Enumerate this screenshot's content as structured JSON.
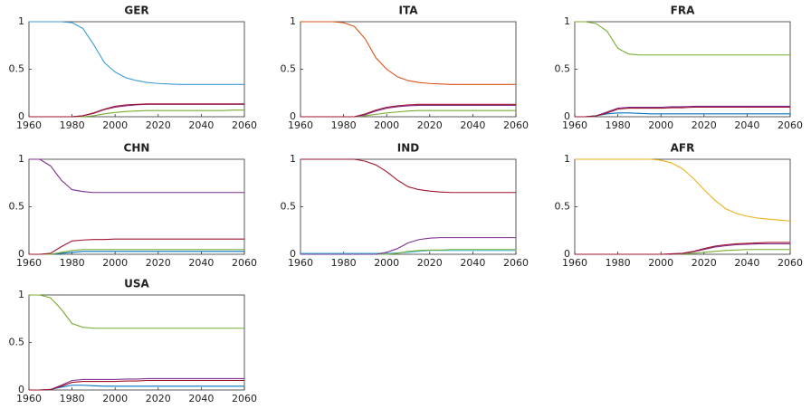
{
  "chart_data": [
    {
      "type": "line",
      "title": "GER",
      "x": [
        1960,
        1965,
        1970,
        1975,
        1980,
        1985,
        1990,
        1995,
        2000,
        2005,
        2010,
        2015,
        2020,
        2025,
        2030,
        2035,
        2040,
        2045,
        2050,
        2055,
        2060
      ],
      "xlim": [
        1960,
        2060
      ],
      "xticks": [
        1960,
        1980,
        2000,
        2020,
        2040,
        2060
      ],
      "ylim": [
        0,
        1
      ],
      "yticks": [
        0,
        0.5,
        1
      ],
      "series": [
        {
          "color": "#3d9bd6",
          "values": [
            1,
            1,
            1,
            1,
            0.99,
            0.93,
            0.76,
            0.57,
            0.47,
            0.41,
            0.38,
            0.36,
            0.35,
            0.345,
            0.34,
            0.34,
            0.34,
            0.34,
            0.34,
            0.34,
            0.34
          ]
        },
        {
          "color": "#77ac30",
          "values": [
            0,
            0,
            0,
            0,
            0,
            0,
            0.01,
            0.03,
            0.045,
            0.055,
            0.06,
            0.065,
            0.065,
            0.065,
            0.065,
            0.065,
            0.065,
            0.065,
            0.065,
            0.07,
            0.07
          ]
        },
        {
          "color": "#7e2f8e",
          "values": [
            0,
            0,
            0,
            0,
            0,
            0.01,
            0.035,
            0.075,
            0.1,
            0.115,
            0.125,
            0.13,
            0.13,
            0.13,
            0.13,
            0.13,
            0.13,
            0.13,
            0.13,
            0.13,
            0.13
          ]
        },
        {
          "color": "#a2142f",
          "values": [
            0,
            0,
            0,
            0,
            0,
            0.01,
            0.04,
            0.08,
            0.11,
            0.125,
            0.13,
            0.135,
            0.135,
            0.135,
            0.135,
            0.135,
            0.135,
            0.135,
            0.135,
            0.135,
            0.135
          ]
        }
      ]
    },
    {
      "type": "line",
      "title": "ITA",
      "x": [
        1960,
        1965,
        1970,
        1975,
        1980,
        1985,
        1990,
        1995,
        2000,
        2005,
        2010,
        2015,
        2020,
        2025,
        2030,
        2035,
        2040,
        2045,
        2050,
        2055,
        2060
      ],
      "xlim": [
        1960,
        2060
      ],
      "xticks": [
        1960,
        1980,
        2000,
        2020,
        2040,
        2060
      ],
      "ylim": [
        0,
        1
      ],
      "yticks": [
        0,
        0.5,
        1
      ],
      "series": [
        {
          "color": "#d95319",
          "values": [
            1,
            1,
            1,
            1,
            0.99,
            0.95,
            0.82,
            0.62,
            0.5,
            0.42,
            0.38,
            0.36,
            0.35,
            0.345,
            0.34,
            0.34,
            0.34,
            0.34,
            0.34,
            0.34,
            0.34
          ]
        },
        {
          "color": "#77ac30",
          "values": [
            0,
            0,
            0,
            0,
            0,
            0,
            0.01,
            0.025,
            0.04,
            0.05,
            0.06,
            0.065,
            0.065,
            0.065,
            0.065,
            0.065,
            0.065,
            0.065,
            0.065,
            0.065,
            0.065
          ]
        },
        {
          "color": "#7e2f8e",
          "values": [
            0,
            0,
            0,
            0,
            0,
            0,
            0.02,
            0.06,
            0.09,
            0.105,
            0.115,
            0.12,
            0.12,
            0.12,
            0.12,
            0.12,
            0.12,
            0.12,
            0.12,
            0.12,
            0.12
          ]
        },
        {
          "color": "#a2142f",
          "values": [
            0,
            0,
            0,
            0,
            0,
            0,
            0.03,
            0.07,
            0.1,
            0.115,
            0.125,
            0.13,
            0.13,
            0.13,
            0.13,
            0.13,
            0.13,
            0.13,
            0.13,
            0.13,
            0.13
          ]
        }
      ]
    },
    {
      "type": "line",
      "title": "FRA",
      "x": [
        1960,
        1965,
        1970,
        1975,
        1980,
        1985,
        1990,
        1995,
        2000,
        2005,
        2010,
        2015,
        2020,
        2025,
        2030,
        2035,
        2040,
        2045,
        2050,
        2055,
        2060
      ],
      "xlim": [
        1960,
        2060
      ],
      "xticks": [
        1960,
        1980,
        2000,
        2020,
        2040,
        2060
      ],
      "ylim": [
        0,
        1
      ],
      "yticks": [
        0,
        0.5,
        1
      ],
      "series": [
        {
          "color": "#77ac30",
          "values": [
            1,
            1,
            0.98,
            0.9,
            0.72,
            0.66,
            0.65,
            0.65,
            0.65,
            0.65,
            0.65,
            0.65,
            0.65,
            0.65,
            0.65,
            0.65,
            0.65,
            0.65,
            0.65,
            0.65,
            0.65
          ]
        },
        {
          "color": "#0072bd",
          "values": [
            0,
            0,
            0.01,
            0.03,
            0.04,
            0.04,
            0.035,
            0.03,
            0.03,
            0.03,
            0.03,
            0.03,
            0.03,
            0.03,
            0.03,
            0.03,
            0.03,
            0.03,
            0.03,
            0.03,
            0.03
          ]
        },
        {
          "color": "#7e2f8e",
          "values": [
            0,
            0,
            0.01,
            0.05,
            0.09,
            0.1,
            0.1,
            0.1,
            0.1,
            0.105,
            0.105,
            0.11,
            0.11,
            0.11,
            0.11,
            0.11,
            0.11,
            0.11,
            0.11,
            0.11,
            0.11
          ]
        },
        {
          "color": "#a2142f",
          "values": [
            0,
            0,
            0.01,
            0.04,
            0.08,
            0.09,
            0.09,
            0.09,
            0.09,
            0.095,
            0.095,
            0.1,
            0.1,
            0.1,
            0.1,
            0.1,
            0.1,
            0.1,
            0.1,
            0.1,
            0.1
          ]
        }
      ]
    },
    {
      "type": "line",
      "title": "CHN",
      "x": [
        1960,
        1965,
        1970,
        1975,
        1980,
        1985,
        1990,
        1995,
        2000,
        2005,
        2010,
        2015,
        2020,
        2025,
        2030,
        2035,
        2040,
        2045,
        2050,
        2055,
        2060
      ],
      "xlim": [
        1960,
        2060
      ],
      "xticks": [
        1960,
        1980,
        2000,
        2020,
        2040,
        2060
      ],
      "ylim": [
        0,
        1
      ],
      "yticks": [
        0,
        0.5,
        1
      ],
      "series": [
        {
          "color": "#7e2f8e",
          "values": [
            1,
            1,
            0.93,
            0.78,
            0.68,
            0.66,
            0.65,
            0.65,
            0.65,
            0.65,
            0.65,
            0.65,
            0.65,
            0.65,
            0.65,
            0.65,
            0.65,
            0.65,
            0.65,
            0.65,
            0.65
          ]
        },
        {
          "color": "#0072bd",
          "values": [
            0,
            0,
            0,
            0.01,
            0.02,
            0.03,
            0.03,
            0.03,
            0.03,
            0.03,
            0.03,
            0.03,
            0.03,
            0.03,
            0.03,
            0.03,
            0.03,
            0.03,
            0.03,
            0.03,
            0.03
          ]
        },
        {
          "color": "#77ac30",
          "values": [
            0,
            0,
            0,
            0.02,
            0.04,
            0.05,
            0.05,
            0.05,
            0.05,
            0.05,
            0.05,
            0.05,
            0.05,
            0.05,
            0.05,
            0.05,
            0.05,
            0.05,
            0.05,
            0.05,
            0.05
          ]
        },
        {
          "color": "#a2142f",
          "values": [
            0,
            0,
            0.01,
            0.08,
            0.14,
            0.15,
            0.155,
            0.155,
            0.16,
            0.16,
            0.16,
            0.16,
            0.16,
            0.16,
            0.16,
            0.16,
            0.16,
            0.16,
            0.16,
            0.16,
            0.16
          ]
        }
      ]
    },
    {
      "type": "line",
      "title": "IND",
      "x": [
        1960,
        1965,
        1970,
        1975,
        1980,
        1985,
        1990,
        1995,
        2000,
        2005,
        2010,
        2015,
        2020,
        2025,
        2030,
        2035,
        2040,
        2045,
        2050,
        2055,
        2060
      ],
      "xlim": [
        1960,
        2060
      ],
      "xticks": [
        1960,
        1980,
        2000,
        2020,
        2040,
        2060
      ],
      "ylim": [
        0,
        1
      ],
      "yticks": [
        0,
        0.5,
        1
      ],
      "series": [
        {
          "color": "#a2142f",
          "values": [
            1,
            1,
            1,
            1,
            1,
            1,
            0.98,
            0.94,
            0.87,
            0.78,
            0.71,
            0.68,
            0.665,
            0.655,
            0.65,
            0.65,
            0.65,
            0.65,
            0.65,
            0.65,
            0.65
          ]
        },
        {
          "color": "#4dbeee",
          "values": [
            0.01,
            0.01,
            0.01,
            0.01,
            0.01,
            0.01,
            0.01,
            0.01,
            0.01,
            0.015,
            0.02,
            0.03,
            0.04,
            0.04,
            0.04,
            0.04,
            0.04,
            0.04,
            0.04,
            0.04,
            0.04
          ]
        },
        {
          "color": "#77ac30",
          "values": [
            0,
            0,
            0,
            0,
            0,
            0,
            0,
            0,
            0,
            0.01,
            0.03,
            0.04,
            0.045,
            0.045,
            0.05,
            0.05,
            0.05,
            0.05,
            0.05,
            0.05,
            0.05
          ]
        },
        {
          "color": "#7e2f8e",
          "values": [
            0,
            0,
            0,
            0,
            0,
            0,
            0,
            0,
            0.02,
            0.06,
            0.12,
            0.155,
            0.17,
            0.175,
            0.175,
            0.175,
            0.175,
            0.175,
            0.175,
            0.175,
            0.175
          ]
        }
      ]
    },
    {
      "type": "line",
      "title": "AFR",
      "x": [
        1960,
        1965,
        1970,
        1975,
        1980,
        1985,
        1990,
        1995,
        2000,
        2005,
        2010,
        2015,
        2020,
        2025,
        2030,
        2035,
        2040,
        2045,
        2050,
        2055,
        2060
      ],
      "xlim": [
        1960,
        2060
      ],
      "xticks": [
        1960,
        1980,
        2000,
        2020,
        2040,
        2060
      ],
      "ylim": [
        0,
        1
      ],
      "yticks": [
        0,
        0.5,
        1
      ],
      "series": [
        {
          "color": "#edb120",
          "values": [
            1,
            1,
            1,
            1,
            1,
            1,
            1,
            1,
            0.99,
            0.96,
            0.9,
            0.8,
            0.68,
            0.57,
            0.48,
            0.43,
            0.4,
            0.38,
            0.37,
            0.36,
            0.35
          ]
        },
        {
          "color": "#77ac30",
          "values": [
            0,
            0,
            0,
            0,
            0,
            0,
            0,
            0,
            0,
            0,
            0.005,
            0.01,
            0.02,
            0.03,
            0.04,
            0.045,
            0.05,
            0.05,
            0.05,
            0.05,
            0.05
          ]
        },
        {
          "color": "#7e2f8e",
          "values": [
            0,
            0,
            0,
            0,
            0,
            0,
            0,
            0,
            0,
            0,
            0.01,
            0.025,
            0.05,
            0.075,
            0.09,
            0.1,
            0.105,
            0.11,
            0.11,
            0.11,
            0.11
          ]
        },
        {
          "color": "#a2142f",
          "values": [
            0,
            0,
            0,
            0,
            0,
            0,
            0,
            0,
            0,
            0.005,
            0.01,
            0.03,
            0.06,
            0.085,
            0.1,
            0.11,
            0.115,
            0.12,
            0.125,
            0.125,
            0.125
          ]
        }
      ]
    },
    {
      "type": "line",
      "title": "USA",
      "x": [
        1960,
        1965,
        1970,
        1975,
        1980,
        1985,
        1990,
        1995,
        2000,
        2005,
        2010,
        2015,
        2020,
        2025,
        2030,
        2035,
        2040,
        2045,
        2050,
        2055,
        2060
      ],
      "xlim": [
        1960,
        2060
      ],
      "xticks": [
        1960,
        1980,
        2000,
        2020,
        2040,
        2060
      ],
      "ylim": [
        0,
        1
      ],
      "yticks": [
        0,
        0.5,
        1
      ],
      "series": [
        {
          "color": "#77ac30",
          "values": [
            1,
            1,
            0.97,
            0.85,
            0.7,
            0.66,
            0.65,
            0.65,
            0.65,
            0.65,
            0.65,
            0.65,
            0.65,
            0.65,
            0.65,
            0.65,
            0.65,
            0.65,
            0.65,
            0.65,
            0.65
          ]
        },
        {
          "color": "#0072bd",
          "values": [
            0,
            0,
            0.005,
            0.03,
            0.05,
            0.05,
            0.045,
            0.04,
            0.04,
            0.04,
            0.04,
            0.04,
            0.04,
            0.04,
            0.04,
            0.04,
            0.04,
            0.04,
            0.04,
            0.04,
            0.04
          ]
        },
        {
          "color": "#7e2f8e",
          "values": [
            0,
            0,
            0.005,
            0.05,
            0.1,
            0.11,
            0.11,
            0.11,
            0.11,
            0.115,
            0.115,
            0.12,
            0.12,
            0.12,
            0.12,
            0.12,
            0.12,
            0.12,
            0.12,
            0.12,
            0.12
          ]
        },
        {
          "color": "#a2142f",
          "values": [
            0,
            0,
            0.005,
            0.04,
            0.08,
            0.09,
            0.09,
            0.09,
            0.09,
            0.095,
            0.095,
            0.1,
            0.1,
            0.1,
            0.1,
            0.1,
            0.1,
            0.1,
            0.1,
            0.1,
            0.1
          ]
        }
      ]
    }
  ]
}
